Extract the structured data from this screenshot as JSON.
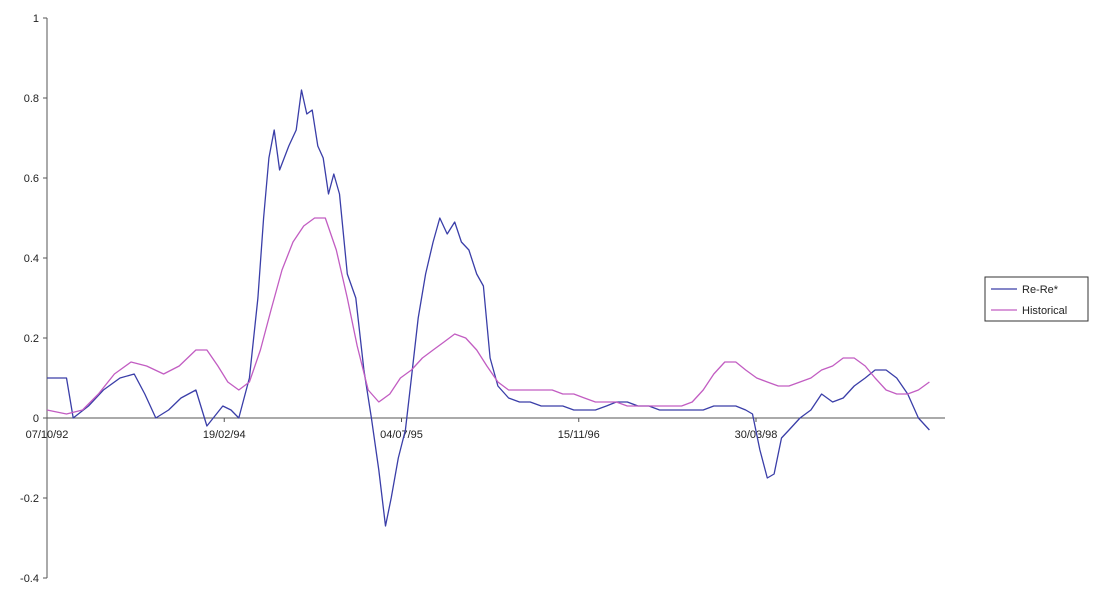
{
  "chart_data": {
    "type": "line",
    "title": "",
    "xlabel": "",
    "ylabel": "",
    "x_tick_labels": [
      "07/10/92",
      "19/02/94",
      "04/07/95",
      "15/11/96",
      "30/03/98"
    ],
    "y_tick_labels": [
      "1",
      "0.8",
      "0.6",
      "0.4",
      "0.2",
      "0",
      "-0.2",
      "-0.4"
    ],
    "ylim": [
      -0.4,
      1
    ],
    "x_range": [
      "1992-10-07",
      "1999-08-01"
    ],
    "grid": false,
    "legend_position": "right",
    "series": [
      {
        "name": "Re-Re*",
        "color": "#3a3ea8",
        "points": [
          [
            "1992-10-07",
            0.1
          ],
          [
            "1992-12-01",
            0.1
          ],
          [
            "1992-12-20",
            0.0
          ],
          [
            "1993-02-01",
            0.03
          ],
          [
            "1993-03-15",
            0.07
          ],
          [
            "1993-05-01",
            0.1
          ],
          [
            "1993-06-10",
            0.11
          ],
          [
            "1993-07-10",
            0.06
          ],
          [
            "1993-08-10",
            0.0
          ],
          [
            "1993-09-15",
            0.02
          ],
          [
            "1993-10-20",
            0.05
          ],
          [
            "1993-12-01",
            0.07
          ],
          [
            "1994-01-01",
            -0.02
          ],
          [
            "1994-02-15",
            0.03
          ],
          [
            "1994-03-10",
            0.02
          ],
          [
            "1994-04-01",
            0.0
          ],
          [
            "1994-05-01",
            0.1
          ],
          [
            "1994-05-25",
            0.3
          ],
          [
            "1994-06-10",
            0.5
          ],
          [
            "1994-06-25",
            0.65
          ],
          [
            "1994-07-10",
            0.72
          ],
          [
            "1994-07-25",
            0.62
          ],
          [
            "1994-08-20",
            0.68
          ],
          [
            "1994-09-10",
            0.72
          ],
          [
            "1994-09-25",
            0.82
          ],
          [
            "1994-10-10",
            0.76
          ],
          [
            "1994-10-25",
            0.77
          ],
          [
            "1994-11-10",
            0.68
          ],
          [
            "1994-11-25",
            0.65
          ],
          [
            "1994-12-10",
            0.56
          ],
          [
            "1994-12-25",
            0.61
          ],
          [
            "1995-01-10",
            0.56
          ],
          [
            "1995-02-01",
            0.36
          ],
          [
            "1995-02-25",
            0.3
          ],
          [
            "1995-03-20",
            0.12
          ],
          [
            "1995-04-10",
            0.0
          ],
          [
            "1995-05-01",
            -0.13
          ],
          [
            "1995-05-20",
            -0.27
          ],
          [
            "1995-06-05",
            -0.2
          ],
          [
            "1995-06-25",
            -0.1
          ],
          [
            "1995-07-15",
            -0.03
          ],
          [
            "1995-08-01",
            0.1
          ],
          [
            "1995-08-20",
            0.25
          ],
          [
            "1995-09-10",
            0.36
          ],
          [
            "1995-10-01",
            0.44
          ],
          [
            "1995-10-20",
            0.5
          ],
          [
            "1995-11-10",
            0.46
          ],
          [
            "1995-12-01",
            0.49
          ],
          [
            "1995-12-20",
            0.44
          ],
          [
            "1996-01-10",
            0.42
          ],
          [
            "1996-02-01",
            0.36
          ],
          [
            "1996-02-20",
            0.33
          ],
          [
            "1996-03-10",
            0.15
          ],
          [
            "1996-04-01",
            0.08
          ],
          [
            "1996-05-01",
            0.05
          ],
          [
            "1996-06-01",
            0.04
          ],
          [
            "1996-07-01",
            0.04
          ],
          [
            "1996-08-01",
            0.03
          ],
          [
            "1996-09-01",
            0.03
          ],
          [
            "1996-10-01",
            0.03
          ],
          [
            "1996-11-01",
            0.02
          ],
          [
            "1996-12-01",
            0.02
          ],
          [
            "1997-01-01",
            0.02
          ],
          [
            "1997-02-01",
            0.03
          ],
          [
            "1997-03-01",
            0.04
          ],
          [
            "1997-04-01",
            0.04
          ],
          [
            "1997-05-01",
            0.03
          ],
          [
            "1997-06-01",
            0.03
          ],
          [
            "1997-07-01",
            0.02
          ],
          [
            "1997-08-01",
            0.02
          ],
          [
            "1997-09-01",
            0.02
          ],
          [
            "1997-10-01",
            0.02
          ],
          [
            "1997-11-01",
            0.02
          ],
          [
            "1997-12-01",
            0.03
          ],
          [
            "1998-01-01",
            0.03
          ],
          [
            "1998-02-01",
            0.03
          ],
          [
            "1998-03-01",
            0.02
          ],
          [
            "1998-03-20",
            0.01
          ],
          [
            "1998-04-10",
            -0.08
          ],
          [
            "1998-05-01",
            -0.15
          ],
          [
            "1998-05-20",
            -0.14
          ],
          [
            "1998-06-10",
            -0.05
          ],
          [
            "1998-07-01",
            -0.03
          ],
          [
            "1998-08-01",
            0.0
          ],
          [
            "1998-09-01",
            0.02
          ],
          [
            "1998-10-01",
            0.06
          ],
          [
            "1998-11-01",
            0.04
          ],
          [
            "1998-12-01",
            0.05
          ],
          [
            "1999-01-01",
            0.08
          ],
          [
            "1999-02-01",
            0.1
          ],
          [
            "1999-03-01",
            0.12
          ],
          [
            "1999-04-01",
            0.12
          ],
          [
            "1999-05-01",
            0.1
          ],
          [
            "1999-06-01",
            0.06
          ],
          [
            "1999-07-01",
            0.0
          ],
          [
            "1999-08-01",
            -0.03
          ]
        ]
      },
      {
        "name": "Historical",
        "color": "#c25dc2",
        "points": [
          [
            "1992-10-07",
            0.02
          ],
          [
            "1992-12-01",
            0.01
          ],
          [
            "1993-01-15",
            0.02
          ],
          [
            "1993-03-01",
            0.06
          ],
          [
            "1993-04-15",
            0.11
          ],
          [
            "1993-06-01",
            0.14
          ],
          [
            "1993-07-15",
            0.13
          ],
          [
            "1993-09-01",
            0.11
          ],
          [
            "1993-10-15",
            0.13
          ],
          [
            "1993-12-01",
            0.17
          ],
          [
            "1994-01-01",
            0.17
          ],
          [
            "1994-02-01",
            0.13
          ],
          [
            "1994-03-01",
            0.09
          ],
          [
            "1994-04-01",
            0.07
          ],
          [
            "1994-05-01",
            0.09
          ],
          [
            "1994-06-01",
            0.17
          ],
          [
            "1994-07-01",
            0.27
          ],
          [
            "1994-08-01",
            0.37
          ],
          [
            "1994-09-01",
            0.44
          ],
          [
            "1994-10-01",
            0.48
          ],
          [
            "1994-11-01",
            0.5
          ],
          [
            "1994-12-01",
            0.5
          ],
          [
            "1995-01-01",
            0.42
          ],
          [
            "1995-02-01",
            0.3
          ],
          [
            "1995-03-01",
            0.18
          ],
          [
            "1995-04-01",
            0.07
          ],
          [
            "1995-05-01",
            0.04
          ],
          [
            "1995-06-01",
            0.06
          ],
          [
            "1995-07-01",
            0.1
          ],
          [
            "1995-08-01",
            0.12
          ],
          [
            "1995-09-01",
            0.15
          ],
          [
            "1995-10-01",
            0.17
          ],
          [
            "1995-11-01",
            0.19
          ],
          [
            "1995-12-01",
            0.21
          ],
          [
            "1996-01-01",
            0.2
          ],
          [
            "1996-02-01",
            0.17
          ],
          [
            "1996-03-01",
            0.13
          ],
          [
            "1996-04-01",
            0.09
          ],
          [
            "1996-05-01",
            0.07
          ],
          [
            "1996-06-01",
            0.07
          ],
          [
            "1996-07-01",
            0.07
          ],
          [
            "1996-08-01",
            0.07
          ],
          [
            "1996-09-01",
            0.07
          ],
          [
            "1996-10-01",
            0.06
          ],
          [
            "1996-11-01",
            0.06
          ],
          [
            "1996-12-01",
            0.05
          ],
          [
            "1997-01-01",
            0.04
          ],
          [
            "1997-02-01",
            0.04
          ],
          [
            "1997-03-01",
            0.04
          ],
          [
            "1997-04-01",
            0.03
          ],
          [
            "1997-05-01",
            0.03
          ],
          [
            "1997-06-01",
            0.03
          ],
          [
            "1997-07-01",
            0.03
          ],
          [
            "1997-08-01",
            0.03
          ],
          [
            "1997-09-01",
            0.03
          ],
          [
            "1997-10-01",
            0.04
          ],
          [
            "1997-11-01",
            0.07
          ],
          [
            "1997-12-01",
            0.11
          ],
          [
            "1998-01-01",
            0.14
          ],
          [
            "1998-02-01",
            0.14
          ],
          [
            "1998-03-01",
            0.12
          ],
          [
            "1998-04-01",
            0.1
          ],
          [
            "1998-05-01",
            0.09
          ],
          [
            "1998-06-01",
            0.08
          ],
          [
            "1998-07-01",
            0.08
          ],
          [
            "1998-08-01",
            0.09
          ],
          [
            "1998-09-01",
            0.1
          ],
          [
            "1998-10-01",
            0.12
          ],
          [
            "1998-11-01",
            0.13
          ],
          [
            "1998-12-01",
            0.15
          ],
          [
            "1999-01-01",
            0.15
          ],
          [
            "1999-02-01",
            0.13
          ],
          [
            "1999-03-01",
            0.1
          ],
          [
            "1999-04-01",
            0.07
          ],
          [
            "1999-05-01",
            0.06
          ],
          [
            "1999-06-01",
            0.06
          ],
          [
            "1999-07-01",
            0.07
          ],
          [
            "1999-08-01",
            0.09
          ]
        ]
      }
    ]
  }
}
